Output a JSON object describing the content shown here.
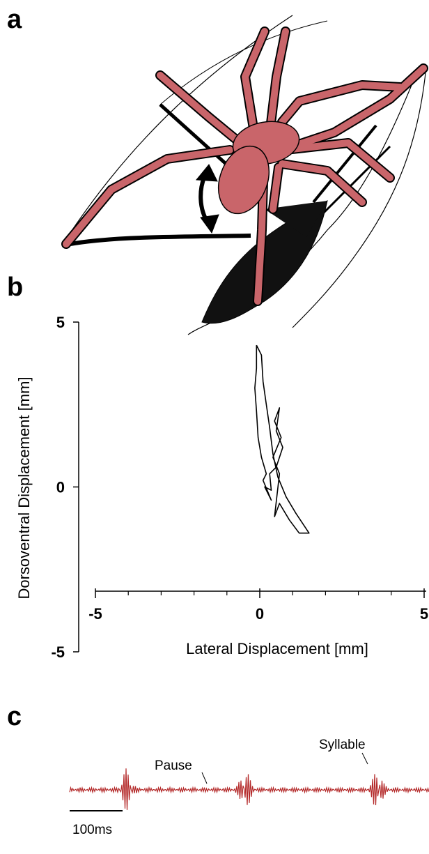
{
  "panels": [
    {
      "label": "a"
    },
    {
      "label": "b"
    },
    {
      "label": "c"
    }
  ],
  "chart_data": {
    "type": "line",
    "x_label": "Lateral Displacement [mm]",
    "y_label": "Dorsoventral Displacement [mm]",
    "color": "#000000",
    "x": [
      -0.1,
      0.05,
      0.1,
      0.2,
      0.3,
      0.4,
      0.55,
      0.8,
      1.1,
      1.5,
      1.2,
      0.9,
      0.6,
      0.45,
      0.6,
      0.4,
      0.65,
      0.45,
      0.6,
      0.5,
      0.7,
      0.5,
      0.3,
      0.35,
      0.15,
      0.35,
      0.1,
      0.2,
      0.05,
      -0.05,
      -0.1,
      -0.15,
      -0.1,
      -0.1
    ],
    "values": [
      4.3,
      4.0,
      3.2,
      2.5,
      1.8,
      1.0,
      0.3,
      -0.3,
      -0.8,
      -1.4,
      -1.4,
      -1.0,
      -0.5,
      -0.9,
      0.4,
      0.9,
      1.5,
      2.0,
      2.4,
      1.7,
      1.2,
      0.6,
      0.4,
      -0.1,
      0.0,
      -0.4,
      0.2,
      0.4,
      0.9,
      1.5,
      2.3,
      3.0,
      3.6,
      4.3
    ],
    "xlim": [
      -5,
      5
    ],
    "ylim": [
      -5,
      5
    ],
    "xticks": [
      -5,
      0,
      5
    ],
    "yticks": [
      5,
      0,
      -5
    ],
    "xminorticks": [
      -4,
      -3,
      -2,
      -1,
      1,
      2,
      3,
      4
    ]
  },
  "oscillogram": {
    "annotations": [
      "Pause",
      "Syllable"
    ],
    "scale_bar": "100ms"
  }
}
